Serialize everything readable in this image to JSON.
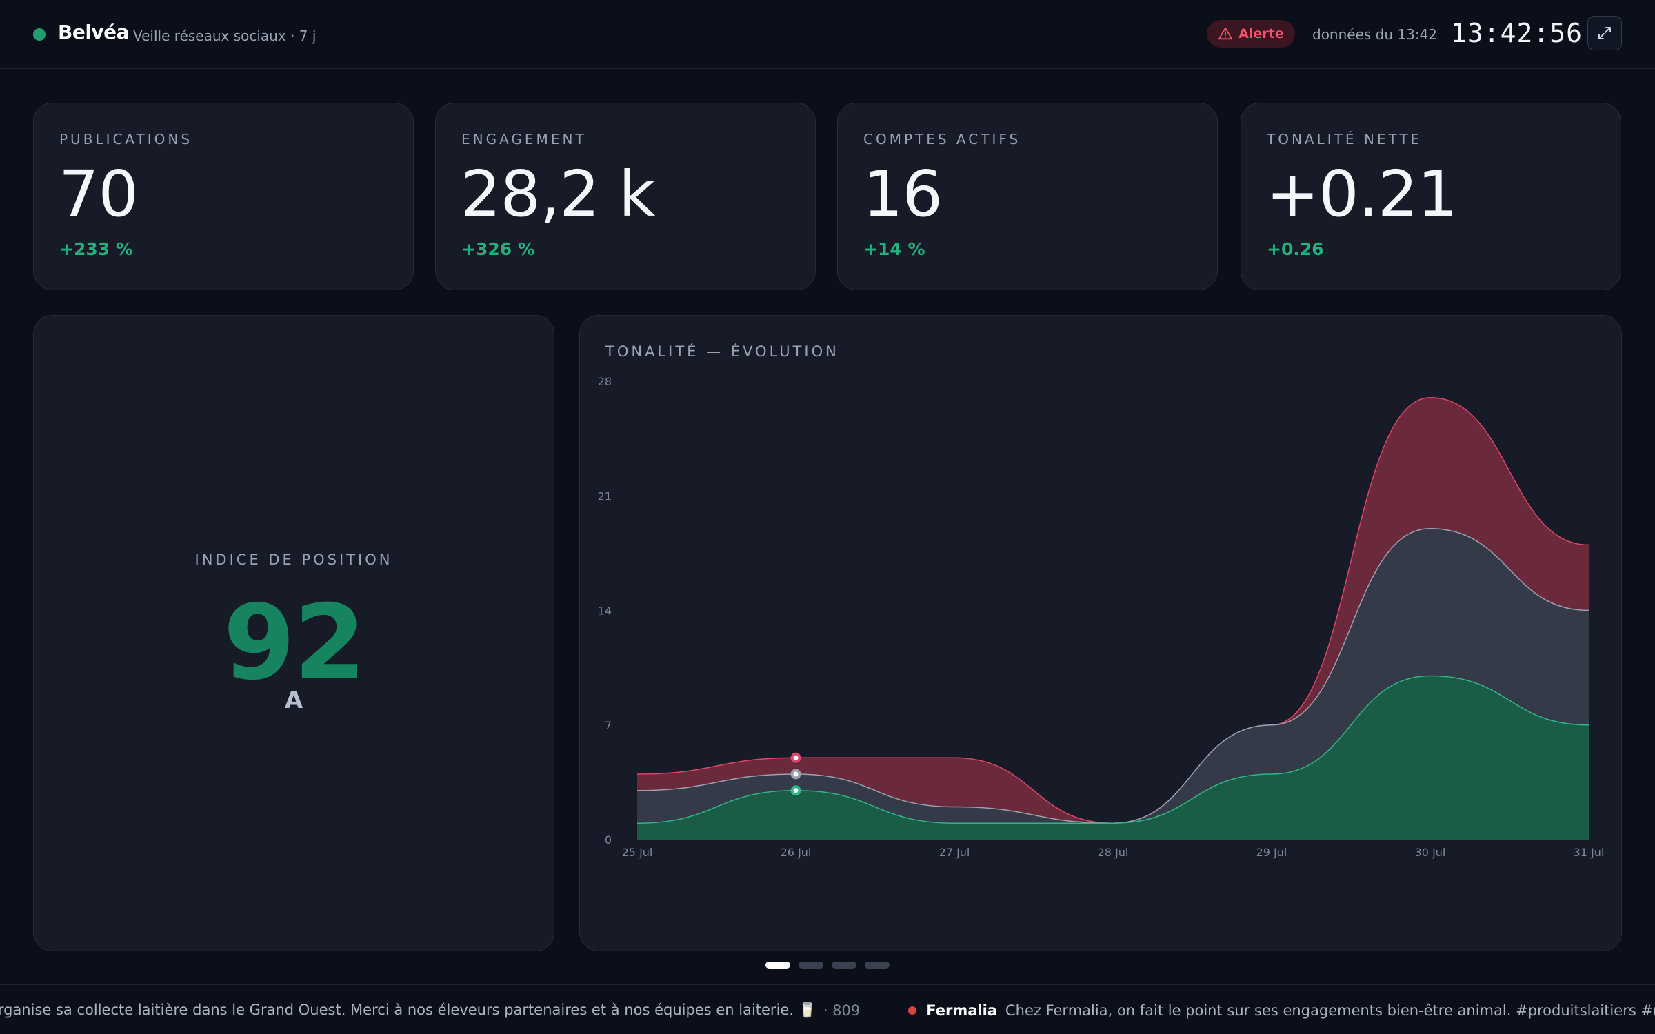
{
  "header": {
    "brand": "Belvéa",
    "subtitle": "Veille réseaux sociaux · 7 j",
    "alert_label": "Alerte",
    "data_time": "données du 13:42",
    "clock": "13:42:56",
    "icons": {
      "status": "status-dot",
      "alert": "warning-triangle-icon",
      "expand": "expand-icon"
    }
  },
  "kpis": [
    {
      "label": "PUBLICATIONS",
      "value": "70",
      "delta": "+233 %"
    },
    {
      "label": "ENGAGEMENT",
      "value": "28,2 k",
      "delta": "+326 %"
    },
    {
      "label": "COMPTES ACTIFS",
      "value": "16",
      "delta": "+14 %"
    },
    {
      "label": "TONALITÉ NETTE",
      "value": "+0.21",
      "delta": "+0.26"
    }
  ],
  "position_index": {
    "label": "INDICE DE POSITION",
    "value": "92",
    "grade": "A"
  },
  "chart_data": {
    "type": "area",
    "title": "TONALITÉ — ÉVOLUTION",
    "stacked": true,
    "categories": [
      "25 Jul",
      "26 Jul",
      "27 Jul",
      "28 Jul",
      "29 Jul",
      "30 Jul",
      "31 Jul"
    ],
    "series": [
      {
        "color": "#1a5c46",
        "stroke": "#2fb68a",
        "values": [
          1,
          3,
          1,
          1,
          4,
          10,
          7
        ]
      },
      {
        "color": "#343a47",
        "stroke": "#9aa2b1",
        "values": [
          2,
          1,
          1,
          0,
          3,
          9,
          7
        ]
      },
      {
        "color": "#6a2a3c",
        "stroke": "#e0456a",
        "values": [
          1,
          1,
          3,
          0,
          0,
          8,
          4
        ]
      }
    ],
    "highlight_index": 1,
    "yticks": [
      0,
      7,
      14,
      21,
      28
    ],
    "ylim": [
      0,
      28
    ],
    "grid": false
  },
  "pager": {
    "count": 4,
    "active": 0
  },
  "ticker": [
    {
      "author": "",
      "text": "organise sa collecte laitière dans le Grand Ouest. Merci à nos éleveurs partenaires et à nos équipes en laiterie. 🥛",
      "count": "· 809"
    },
    {
      "author": "Fermalia",
      "text": "Chez Fermalia, on fait le point sur ses engagements bien-être animal. #produitslaitiers #mangerlocal",
      "count": ""
    }
  ]
}
